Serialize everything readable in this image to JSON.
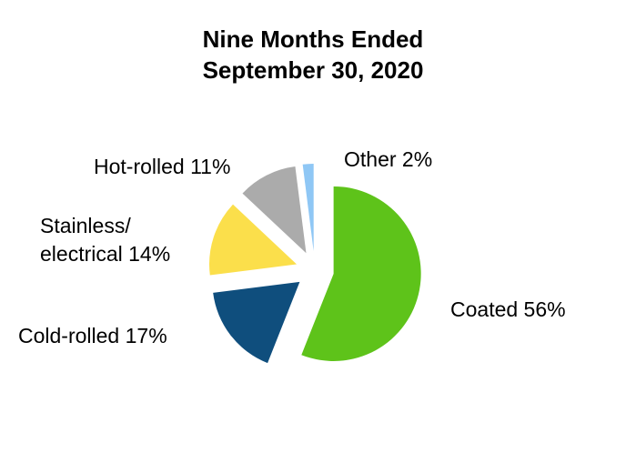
{
  "title": {
    "line1": "Nine Months Ended",
    "line2": "September 30, 2020"
  },
  "chart_data": {
    "type": "pie",
    "title": "Nine Months Ended September 30, 2020",
    "unit": "percent",
    "start_angle_deg": 0,
    "direction": "clockwise",
    "exploded": true,
    "legend_position": "none",
    "labels_outside": true,
    "slices": [
      {
        "label": "Coated",
        "value": 56,
        "display": "Coated 56%",
        "color": "#5EC31A"
      },
      {
        "label": "Cold-rolled",
        "value": 17,
        "display": "Cold-rolled 17%",
        "color": "#0F4E7D"
      },
      {
        "label": "Stainless/electrical",
        "value": 14,
        "display": "Stainless/\nelectrical 14%",
        "color": "#FBDF4B"
      },
      {
        "label": "Hot-rolled",
        "value": 11,
        "display": "Hot-rolled 11%",
        "color": "#ABABAB"
      },
      {
        "label": "Other",
        "value": 2,
        "display": "Other 2%",
        "color": "#8FC7F5"
      }
    ],
    "colors": {
      "text": "#000000",
      "background": "#ffffff"
    }
  }
}
